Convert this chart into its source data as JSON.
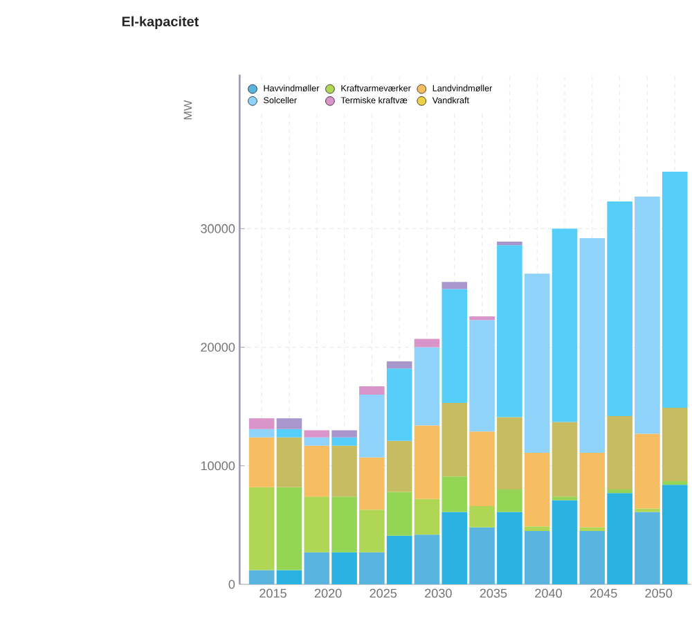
{
  "chart_data": {
    "type": "bar",
    "title": "El-kapacitet",
    "ylabel": "MW",
    "stacked": true,
    "categories": [
      "2015",
      null,
      "2020",
      null,
      "2025",
      null,
      "2030",
      null,
      "2035",
      null,
      "2040",
      null,
      "2045",
      null,
      "2050",
      null
    ],
    "series": [
      {
        "name": "Havvindmøller",
        "color": "#5ab4e0",
        "colors": [
          "#5ab4e0",
          "#29b2e2",
          "#5ab4e0",
          "#29b2e2",
          "#5ab4e0",
          "#29b2e2",
          "#5ab4e0",
          "#29b2e2",
          "#5ab4e0",
          "#29b2e2",
          "#5ab4e0",
          "#29b2e2",
          "#5ab4e0",
          "#29b2e2",
          "#5ab4e0",
          "#29b2e2"
        ],
        "values": [
          1200,
          1200,
          2700,
          2700,
          2700,
          4100,
          4200,
          6100,
          4800,
          6100,
          4500,
          7100,
          4500,
          7700,
          6100,
          8400
        ]
      },
      {
        "name": "Kraftvarmeværker",
        "color": "#b0d656",
        "colors": [
          "#b0d656",
          "#95d556",
          "#b0d656",
          "#95d556",
          "#b0d656",
          "#95d556",
          "#b0d656",
          "#95d556",
          "#b0d656",
          "#95d556",
          "#b0d656",
          "#95d556",
          "#b0d656",
          "#95d556",
          "#b0d656",
          "#95d556"
        ],
        "values": [
          7000,
          7000,
          4700,
          4700,
          3600,
          3700,
          3000,
          3000,
          1800,
          1900,
          400,
          300,
          300,
          300,
          300,
          300
        ]
      },
      {
        "name": "Landvindmøller",
        "color": "#f6bd62",
        "colors": [
          "#f6bd62",
          "#c8bc62",
          "#f6bd62",
          "#c8bc62",
          "#f6bd62",
          "#c8bc62",
          "#f6bd62",
          "#c8bc62",
          "#f6bd62",
          "#c8bc62",
          "#f6bd62",
          "#c8bc62",
          "#f6bd62",
          "#c8bc62",
          "#f6bd62",
          "#c8bc62"
        ],
        "values": [
          4200,
          4200,
          4300,
          4300,
          4400,
          4300,
          6200,
          6200,
          6300,
          6100,
          6200,
          6300,
          6300,
          6200,
          6300,
          6200
        ]
      },
      {
        "name": "Solceller",
        "color": "#8fd3fb",
        "colors": [
          "#8fd3fb",
          "#55cefa",
          "#8fd3fb",
          "#55cefa",
          "#8fd3fb",
          "#55cefa",
          "#8fd3fb",
          "#55cefa",
          "#8fd3fb",
          "#55cefa",
          "#8fd3fb",
          "#55cefa",
          "#8fd3fb",
          "#55cefa",
          "#8fd3fb",
          "#55cefa"
        ],
        "values": [
          700,
          700,
          700,
          700,
          5300,
          6100,
          6600,
          9600,
          9400,
          14500,
          15100,
          16300,
          18100,
          18100,
          20000,
          19900
        ]
      },
      {
        "name": "Termiske kraftvæ",
        "color": "#d994c9",
        "colors": [
          "#d994c9",
          "#a896cc",
          "#d994c9",
          "#a896cc",
          "#d994c9",
          "#a896cc",
          "#d994c9",
          "#a896cc",
          "#d994c9",
          "#a896cc",
          "#d994c9",
          "#a896cc",
          "#d994c9",
          "#a896cc",
          "#d994c9",
          "#a896cc"
        ],
        "values": [
          900,
          900,
          600,
          600,
          700,
          600,
          700,
          600,
          300,
          300,
          0,
          0,
          0,
          0,
          0,
          0
        ]
      },
      {
        "name": "Vandkraft",
        "color": "#f0d048",
        "values": [
          0,
          0,
          0,
          0,
          0,
          0,
          0,
          0,
          0,
          0,
          0,
          0,
          0,
          0,
          0,
          0
        ]
      }
    ],
    "ylim": [
      0,
      43000
    ],
    "yticks": [
      0,
      10000,
      20000,
      30000
    ],
    "grid": true,
    "legend": "top left"
  }
}
